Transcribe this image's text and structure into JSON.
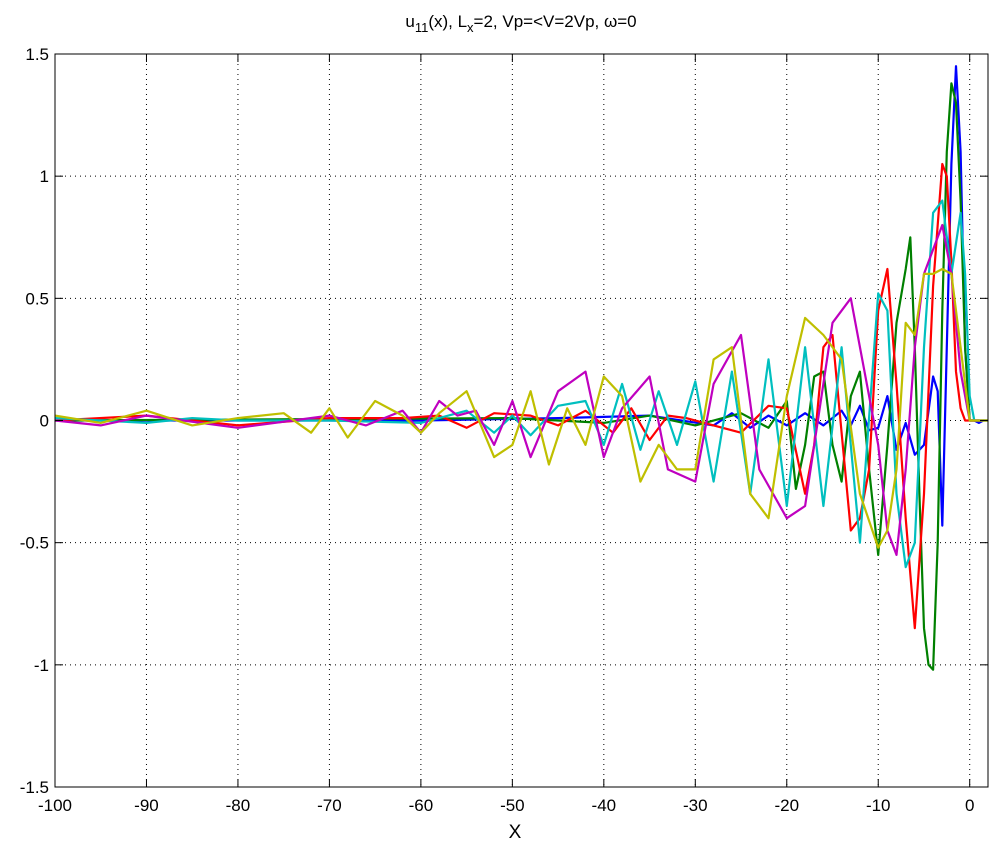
{
  "chart_data": {
    "type": "line",
    "title_parts": {
      "u": "u",
      "u_sub": "11",
      "a": "(x), L",
      "l_sub": "x",
      "b": "=2,  Vp=<V=2Vp, ω=0"
    },
    "xlabel": "X",
    "ylabel": "",
    "xlim": [
      -100,
      2
    ],
    "ylim": [
      -1.5,
      1.5
    ],
    "xticks": [
      -100,
      -90,
      -80,
      -70,
      -60,
      -50,
      -40,
      -30,
      -20,
      -10,
      0
    ],
    "yticks": [
      -1.5,
      -1,
      -0.5,
      0,
      0.5,
      1,
      1.5
    ],
    "grid": "dotted",
    "series": [
      {
        "color": "#0000ff",
        "x": [
          -100,
          -60,
          -45,
          -35,
          -28,
          -26,
          -24,
          -22,
          -20,
          -18,
          -16,
          -14,
          -13,
          -12,
          -11,
          -10,
          -9,
          -8,
          -7,
          -6,
          -5,
          -4,
          -3.5,
          -3,
          -2.5,
          -2,
          -1.5,
          -1,
          -0.5,
          0,
          0.5,
          1,
          1.5,
          2
        ],
        "y": [
          0,
          0,
          0.01,
          0.02,
          -0.02,
          0.03,
          -0.03,
          0.02,
          -0.02,
          0.03,
          -0.02,
          0.04,
          -0.02,
          0.06,
          -0.04,
          -0.03,
          0.1,
          -0.12,
          -0.01,
          -0.14,
          -0.1,
          0.18,
          0.12,
          -0.43,
          0.3,
          1.05,
          1.45,
          1.1,
          0.3,
          0,
          0,
          -0.01,
          0,
          0
        ]
      },
      {
        "color": "#008000",
        "x": [
          -100,
          -50,
          -40,
          -35,
          -30,
          -25,
          -22,
          -20,
          -19,
          -18,
          -17,
          -16,
          -15,
          -14,
          -13,
          -12,
          -11,
          -10,
          -9,
          -8,
          -7,
          -6.5,
          -6,
          -5.5,
          -5,
          -4.5,
          -4,
          -3.5,
          -3,
          -2.5,
          -2,
          -1.5,
          -1,
          -0.5,
          0,
          0.5,
          1,
          1.5,
          2
        ],
        "y": [
          0,
          0.01,
          -0.01,
          0.02,
          -0.02,
          0.03,
          -0.03,
          0.08,
          -0.28,
          -0.1,
          0.18,
          0.2,
          -0.1,
          -0.25,
          0.1,
          0.2,
          -0.2,
          -0.55,
          -0.1,
          0.4,
          0.62,
          0.75,
          0.3,
          -0.3,
          -0.85,
          -1.0,
          -1.02,
          -0.5,
          0.45,
          1.1,
          1.38,
          1.3,
          0.9,
          0.3,
          0,
          0,
          0,
          0,
          0
        ]
      },
      {
        "color": "#ff0000",
        "x": [
          -100,
          -90,
          -80,
          -70,
          -62,
          -58,
          -55,
          -52,
          -48,
          -45,
          -42,
          -39,
          -37,
          -35,
          -33,
          -31,
          -28,
          -25,
          -22,
          -20,
          -18,
          -17,
          -16,
          -15,
          -14,
          -13,
          -12,
          -11,
          -10,
          -9,
          -8,
          -7,
          -6,
          -5,
          -4,
          -3,
          -2.5,
          -2,
          -1.5,
          -1,
          -0.5,
          0,
          0.5,
          1
        ],
        "y": [
          0,
          0.02,
          -0.02,
          0.01,
          0.01,
          0.02,
          -0.03,
          0.03,
          0.02,
          -0.02,
          0.04,
          -0.05,
          0.05,
          -0.08,
          0.02,
          0.01,
          -0.02,
          -0.05,
          0.06,
          0.05,
          -0.3,
          -0.1,
          0.3,
          0.35,
          -0.05,
          -0.45,
          -0.4,
          -0.2,
          0.45,
          0.62,
          0.15,
          -0.4,
          -0.85,
          -0.3,
          0.55,
          1.05,
          1.0,
          0.65,
          0.2,
          0.05,
          0,
          0,
          0,
          0
        ]
      },
      {
        "color": "#00bfbf",
        "x": [
          -100,
          -95,
          -90,
          -85,
          -80,
          -70,
          -60,
          -55,
          -52,
          -50,
          -48,
          -45,
          -42,
          -40,
          -38,
          -36,
          -34,
          -32,
          -30,
          -28,
          -26,
          -24,
          -22,
          -20,
          -18,
          -16,
          -14,
          -12,
          -10,
          -9,
          -8,
          -7,
          -6,
          -5,
          -4,
          -3,
          -2,
          -1,
          -0.5,
          0,
          0.5,
          1,
          1.5
        ],
        "y": [
          0.01,
          0,
          -0.01,
          0.01,
          0,
          0,
          -0.01,
          0.04,
          -0.05,
          0.02,
          -0.06,
          0.06,
          0.08,
          -0.1,
          0.15,
          -0.12,
          0.12,
          -0.1,
          0.16,
          -0.25,
          0.2,
          -0.3,
          0.25,
          -0.35,
          0.3,
          -0.35,
          0.3,
          -0.5,
          0.52,
          0.45,
          -0.3,
          -0.6,
          -0.5,
          0.3,
          0.85,
          0.9,
          0.6,
          0.85,
          0.6,
          0.1,
          0,
          0,
          0
        ]
      },
      {
        "color": "#bf00bf",
        "x": [
          -100,
          -95,
          -90,
          -80,
          -70,
          -66,
          -62,
          -60,
          -58,
          -56,
          -54,
          -52,
          -50,
          -48,
          -45,
          -42,
          -40,
          -38,
          -35,
          -33,
          -30,
          -28,
          -25,
          -23,
          -20,
          -18,
          -15,
          -13,
          -11,
          -10,
          -9,
          -8,
          -7,
          -6,
          -5,
          -4,
          -3,
          -2,
          -1,
          0,
          0.5,
          1,
          1.5
        ],
        "y": [
          0,
          -0.02,
          0.02,
          -0.03,
          0.02,
          -0.02,
          0.04,
          -0.05,
          0.08,
          0.02,
          0.04,
          -0.1,
          0.08,
          -0.15,
          0.12,
          0.2,
          -0.15,
          0.05,
          0.18,
          -0.2,
          -0.25,
          0.15,
          0.35,
          -0.2,
          -0.4,
          -0.35,
          0.4,
          0.5,
          0.1,
          -0.1,
          -0.45,
          -0.55,
          -0.2,
          0.3,
          0.6,
          0.7,
          0.8,
          0.6,
          0.2,
          0,
          0,
          0,
          0
        ]
      },
      {
        "color": "#bfbf00",
        "x": [
          -100,
          -95,
          -90,
          -85,
          -80,
          -75,
          -72,
          -70,
          -68,
          -65,
          -62,
          -60,
          -58,
          -55,
          -52,
          -50,
          -48,
          -46,
          -44,
          -42,
          -40,
          -38,
          -36,
          -34,
          -32,
          -30,
          -28,
          -26,
          -24,
          -22,
          -20,
          -18,
          -16,
          -14,
          -12,
          -10,
          -9,
          -8,
          -7,
          -6,
          -5,
          -4,
          -3,
          -2,
          -1,
          0,
          1,
          2
        ],
        "y": [
          0.02,
          -0.01,
          0.04,
          -0.02,
          0.01,
          0.03,
          -0.05,
          0.05,
          -0.07,
          0.08,
          0.02,
          -0.05,
          0.03,
          0.12,
          -0.15,
          -0.1,
          0.12,
          -0.18,
          0.05,
          -0.1,
          0.18,
          0.1,
          -0.25,
          -0.1,
          -0.2,
          -0.2,
          0.25,
          0.3,
          -0.3,
          -0.4,
          0.1,
          0.42,
          0.35,
          0.25,
          -0.3,
          -0.52,
          -0.45,
          -0.2,
          0.4,
          0.35,
          0.6,
          0.6,
          0.62,
          0.6,
          0.3,
          0,
          0,
          0
        ]
      }
    ]
  }
}
